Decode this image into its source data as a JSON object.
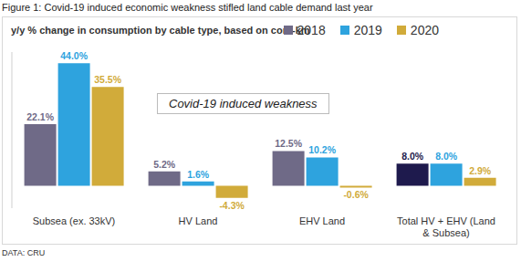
{
  "chart_data": {
    "type": "bar",
    "title": "Figure 1: Covid-19 induced economic weakness stifled land cable demand last year",
    "subtitle": "y/y % change in consumption by cable type, based on core-km",
    "source": "DATA: CRU",
    "annotations": [
      "Covid-19 induced weakness"
    ],
    "categories": [
      "Subsea (ex. 33kV)",
      "HV Land",
      "EHV Land",
      "Total HV + EHV (Land & Subsea)"
    ],
    "series": [
      {
        "name": "2018",
        "color": "#6f6a87",
        "colors": [
          "#6f6a87",
          "#6f6a87",
          "#6f6a87",
          "#1e1a4d"
        ],
        "values": [
          22.1,
          5.2,
          12.5,
          8.0
        ],
        "value_labels": [
          "22.1%",
          "5.2%",
          "12.5%",
          "8.0%"
        ]
      },
      {
        "name": "2019",
        "color": "#2ea3de",
        "values": [
          44.0,
          1.6,
          10.2,
          8.0
        ],
        "value_labels": [
          "44.0%",
          "1.6%",
          "10.2%",
          "8.0%"
        ]
      },
      {
        "name": "2020",
        "color": "#d1ab3a",
        "values": [
          35.5,
          -4.3,
          -0.6,
          2.9
        ],
        "value_labels": [
          "35.5%",
          "-4.3%",
          "-0.6%",
          "2.9%"
        ]
      }
    ],
    "ylim": [
      -8,
      48
    ],
    "tick_labels": "x",
    "data_labels": true,
    "legend": "upper right",
    "grid": false
  }
}
